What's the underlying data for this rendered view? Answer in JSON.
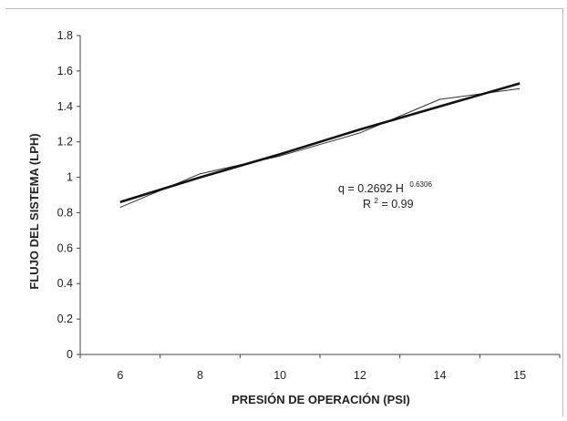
{
  "chart_data": {
    "type": "line",
    "xlabel": "PRESIÓN DE OPERACIÓN (PSI)",
    "ylabel": "FLUJO DEL SISTEMA (LPH)",
    "ylim": [
      0,
      1.8
    ],
    "yticks": [
      0,
      0.2,
      0.4,
      0.6,
      0.8,
      1,
      1.2,
      1.4,
      1.6,
      1.8
    ],
    "categories": [
      "6",
      "8",
      "10",
      "12",
      "14",
      "15"
    ],
    "grid": false,
    "series": [
      {
        "values": [
          0.83,
          1.02,
          1.12,
          1.25,
          1.44,
          1.5
        ],
        "style": "thin"
      },
      {
        "values": [
          0.86,
          1.0,
          1.13,
          1.27,
          1.4,
          1.53
        ],
        "style": "bold"
      }
    ],
    "annotation": {
      "equation_main": "q = 0.2692 H",
      "equation_exp": "0.6306",
      "r2_prefix": "R",
      "r2_exp": "2",
      "r2_suffix": " = 0.99"
    }
  }
}
